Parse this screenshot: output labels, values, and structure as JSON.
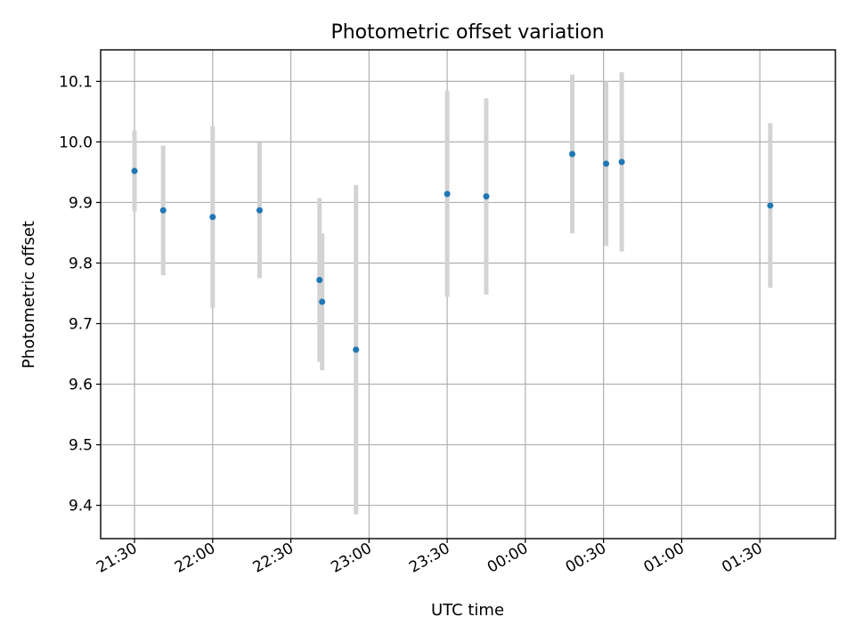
{
  "chart_data": {
    "type": "scatter",
    "title": "Photometric offset variation",
    "xlabel": "UTC time",
    "ylabel": "Photometric offset",
    "x_tick_labels": [
      "21:30",
      "22:00",
      "22:30",
      "23:00",
      "23:30",
      "00:00",
      "00:30",
      "01:00",
      "01:30"
    ],
    "y_ticks": [
      9.4,
      9.5,
      9.6,
      9.7,
      9.8,
      9.9,
      10.0,
      10.1
    ],
    "y_tick_labels": [
      "9.4",
      "9.5",
      "9.6",
      "9.7",
      "9.8",
      "9.9",
      "10.0",
      "10.1"
    ],
    "xlim": [
      "21:17",
      "01:59"
    ],
    "ylim": [
      9.345,
      10.152
    ],
    "grid": true,
    "colors": {
      "point": "#1f77b4",
      "errorbar": "#d3d3d3"
    },
    "points": [
      {
        "x": "21:30",
        "y": 9.952,
        "err": 0.067
      },
      {
        "x": "21:41",
        "y": 9.887,
        "err": 0.107
      },
      {
        "x": "22:00",
        "y": 9.876,
        "err": 0.15
      },
      {
        "x": "22:18",
        "y": 9.887,
        "err": 0.112
      },
      {
        "x": "22:41",
        "y": 9.772,
        "err": 0.135
      },
      {
        "x": "22:42",
        "y": 9.736,
        "err": 0.113
      },
      {
        "x": "22:55",
        "y": 9.657,
        "err": 0.272
      },
      {
        "x": "23:30",
        "y": 9.914,
        "err": 0.17
      },
      {
        "x": "23:45",
        "y": 9.91,
        "err": 0.162
      },
      {
        "x": "00:18",
        "y": 9.98,
        "err": 0.131
      },
      {
        "x": "00:31",
        "y": 9.964,
        "err": 0.136
      },
      {
        "x": "00:37",
        "y": 9.967,
        "err": 0.148
      },
      {
        "x": "01:34",
        "y": 9.895,
        "err": 0.136
      }
    ]
  }
}
